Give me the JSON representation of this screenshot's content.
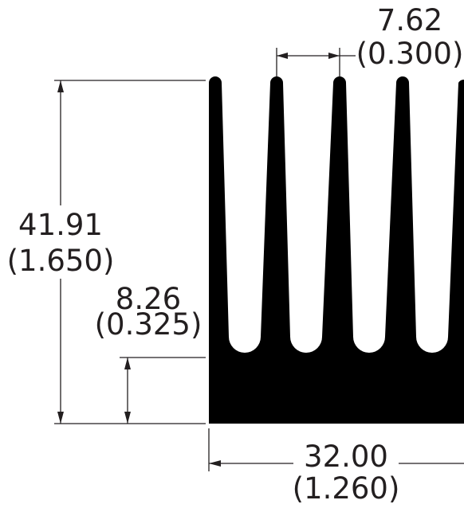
{
  "dimensions": {
    "fin_pitch": {
      "mm": "7.62",
      "inch": "(0.300)"
    },
    "height": {
      "mm": "41.91",
      "inch": "(1.650)"
    },
    "base_thickness": {
      "mm": "8.26",
      "inch": "(0.325)"
    },
    "width": {
      "mm": "32.00",
      "inch": "(1.260)"
    }
  },
  "colors": {
    "profile": "#000000",
    "lines": "#231f20",
    "background": "#ffffff"
  }
}
